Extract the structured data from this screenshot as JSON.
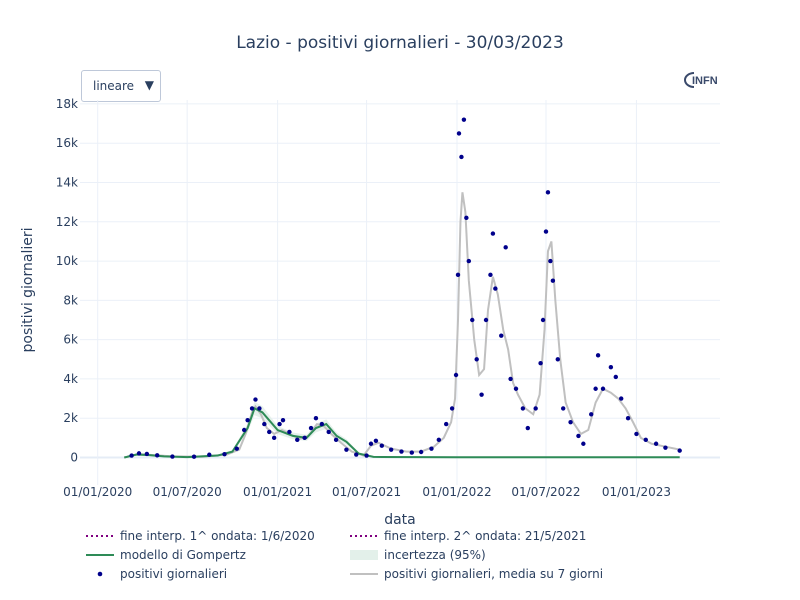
{
  "title": "Lazio - positivi giornalieri - 30/03/2023",
  "dropdown": {
    "selected": "lineare",
    "arrow_icon": "triangle-down-icon"
  },
  "logo": {
    "text": "INFN"
  },
  "colors": {
    "dots": "#00008b",
    "gompertz": "#2e8b57",
    "moving_avg": "#c0c0c0",
    "uncertainty": "#e3f0ea",
    "interp_lines": "#800080",
    "grid": "#ebf0f8",
    "text": "#2a3f5f"
  },
  "chart_data": {
    "type": "scatter",
    "title": "Lazio - positivi giornalieri - 30/03/2023",
    "xlabel": "data",
    "ylabel": "positivi giornalieri",
    "x_range": [
      "2019-11-26",
      "2023-06-20"
    ],
    "ylim": [
      -1400,
      18200
    ],
    "yticks": [
      0,
      2000,
      4000,
      6000,
      8000,
      10000,
      12000,
      14000,
      16000,
      18000
    ],
    "ytick_labels": [
      "0",
      "2k",
      "4k",
      "6k",
      "8k",
      "10k",
      "12k",
      "14k",
      "16k",
      "18k"
    ],
    "xticks": [
      "2020-01-01",
      "2020-07-01",
      "2021-01-01",
      "2021-07-01",
      "2022-01-01",
      "2022-07-01",
      "2023-01-01"
    ],
    "xtick_labels": [
      "01/01/2020",
      "01/07/2020",
      "01/01/2021",
      "01/07/2021",
      "01/01/2022",
      "01/07/2022",
      "01/01/2023"
    ],
    "grid": true,
    "legend_position": "bottom",
    "series": [
      {
        "name": "fine interp. 1^ ondata: 1/6/2020",
        "style": "dotted"
      },
      {
        "name": "fine interp. 2^ ondata: 21/5/2021",
        "style": "dotted"
      },
      {
        "name": "modello di Gompertz",
        "style": "line",
        "x": [
          "2020-02-24",
          "2020-03-20",
          "2020-04-15",
          "2020-05-15",
          "2020-07-01",
          "2020-09-01",
          "2020-10-01",
          "2020-11-01",
          "2020-11-15",
          "2020-12-01",
          "2021-01-01",
          "2021-02-01",
          "2021-03-01",
          "2021-03-20",
          "2021-04-10",
          "2021-05-01",
          "2021-05-21",
          "2021-06-15",
          "2021-07-15",
          "2022-01-01",
          "2023-03-30"
        ],
        "y": [
          0,
          150,
          120,
          60,
          20,
          100,
          300,
          1500,
          2500,
          2300,
          1400,
          1100,
          1000,
          1500,
          1700,
          1100,
          800,
          200,
          30,
          10,
          10
        ]
      },
      {
        "name": "incertezza (95%)",
        "style": "band"
      },
      {
        "name": "positivi giornalieri",
        "style": "markers",
        "points": [
          [
            "2020-03-10",
            100
          ],
          [
            "2020-03-25",
            210
          ],
          [
            "2020-04-10",
            180
          ],
          [
            "2020-05-01",
            110
          ],
          [
            "2020-06-01",
            50
          ],
          [
            "2020-07-15",
            40
          ],
          [
            "2020-08-15",
            140
          ],
          [
            "2020-09-15",
            170
          ],
          [
            "2020-10-10",
            450
          ],
          [
            "2020-10-25",
            1400
          ],
          [
            "2020-11-01",
            1900
          ],
          [
            "2020-11-10",
            2500
          ],
          [
            "2020-11-17",
            2950
          ],
          [
            "2020-11-25",
            2500
          ],
          [
            "2020-12-05",
            1700
          ],
          [
            "2020-12-15",
            1300
          ],
          [
            "2020-12-25",
            1000
          ],
          [
            "2021-01-05",
            1700
          ],
          [
            "2021-01-12",
            1900
          ],
          [
            "2021-01-25",
            1300
          ],
          [
            "2021-02-10",
            900
          ],
          [
            "2021-02-25",
            1000
          ],
          [
            "2021-03-10",
            1500
          ],
          [
            "2021-03-20",
            2000
          ],
          [
            "2021-04-01",
            1700
          ],
          [
            "2021-04-15",
            1300
          ],
          [
            "2021-04-30",
            900
          ],
          [
            "2021-05-21",
            400
          ],
          [
            "2021-06-10",
            150
          ],
          [
            "2021-07-01",
            100
          ],
          [
            "2021-07-10",
            700
          ],
          [
            "2021-07-20",
            850
          ],
          [
            "2021-08-01",
            600
          ],
          [
            "2021-08-20",
            400
          ],
          [
            "2021-09-10",
            300
          ],
          [
            "2021-10-01",
            250
          ],
          [
            "2021-10-20",
            280
          ],
          [
            "2021-11-10",
            450
          ],
          [
            "2021-11-25",
            900
          ],
          [
            "2021-12-10",
            1700
          ],
          [
            "2021-12-22",
            2500
          ],
          [
            "2021-12-30",
            4200
          ],
          [
            "2022-01-03",
            9300
          ],
          [
            "2022-01-05",
            16500
          ],
          [
            "2022-01-10",
            15300
          ],
          [
            "2022-01-15",
            17200
          ],
          [
            "2022-01-20",
            12200
          ],
          [
            "2022-01-25",
            10000
          ],
          [
            "2022-02-01",
            7000
          ],
          [
            "2022-02-10",
            5000
          ],
          [
            "2022-02-20",
            3200
          ],
          [
            "2022-03-01",
            7000
          ],
          [
            "2022-03-10",
            9300
          ],
          [
            "2022-03-15",
            11400
          ],
          [
            "2022-03-20",
            8600
          ],
          [
            "2022-04-01",
            6200
          ],
          [
            "2022-04-10",
            10700
          ],
          [
            "2022-04-20",
            4000
          ],
          [
            "2022-05-01",
            3500
          ],
          [
            "2022-05-15",
            2500
          ],
          [
            "2022-05-25",
            1500
          ],
          [
            "2022-06-10",
            2500
          ],
          [
            "2022-06-20",
            4800
          ],
          [
            "2022-06-25",
            7000
          ],
          [
            "2022-07-01",
            11500
          ],
          [
            "2022-07-05",
            13500
          ],
          [
            "2022-07-10",
            10000
          ],
          [
            "2022-07-15",
            9000
          ],
          [
            "2022-07-25",
            5000
          ],
          [
            "2022-08-05",
            2500
          ],
          [
            "2022-08-20",
            1800
          ],
          [
            "2022-09-05",
            1100
          ],
          [
            "2022-09-15",
            700
          ],
          [
            "2022-10-01",
            2200
          ],
          [
            "2022-10-10",
            3500
          ],
          [
            "2022-10-15",
            5200
          ],
          [
            "2022-10-25",
            3500
          ],
          [
            "2022-11-10",
            4600
          ],
          [
            "2022-11-20",
            4100
          ],
          [
            "2022-12-01",
            3000
          ],
          [
            "2022-12-15",
            2000
          ],
          [
            "2023-01-01",
            1200
          ],
          [
            "2023-01-20",
            900
          ],
          [
            "2023-02-10",
            700
          ],
          [
            "2023-03-01",
            500
          ],
          [
            "2023-03-30",
            350
          ]
        ]
      },
      {
        "name": "positivi giornalieri, media su 7 giorni",
        "style": "line",
        "x": [
          "2020-02-24",
          "2020-03-25",
          "2020-04-20",
          "2020-06-01",
          "2020-08-01",
          "2020-09-20",
          "2020-10-15",
          "2020-10-28",
          "2020-11-10",
          "2020-11-17",
          "2020-11-28",
          "2020-12-10",
          "2020-12-25",
          "2021-01-10",
          "2021-01-25",
          "2021-02-15",
          "2021-03-05",
          "2021-03-22",
          "2021-04-05",
          "2021-04-20",
          "2021-05-10",
          "2021-06-01",
          "2021-06-25",
          "2021-07-10",
          "2021-07-25",
          "2021-08-20",
          "2021-09-20",
          "2021-10-20",
          "2021-11-15",
          "2021-12-05",
          "2021-12-20",
          "2021-12-28",
          "2022-01-03",
          "2022-01-08",
          "2022-01-12",
          "2022-01-18",
          "2022-01-25",
          "2022-02-05",
          "2022-02-15",
          "2022-02-25",
          "2022-03-05",
          "2022-03-15",
          "2022-03-25",
          "2022-04-05",
          "2022-04-15",
          "2022-04-25",
          "2022-05-05",
          "2022-05-20",
          "2022-06-05",
          "2022-06-18",
          "2022-06-28",
          "2022-07-05",
          "2022-07-12",
          "2022-07-20",
          "2022-07-30",
          "2022-08-10",
          "2022-08-25",
          "2022-09-10",
          "2022-09-25",
          "2022-10-10",
          "2022-10-25",
          "2022-11-10",
          "2022-11-25",
          "2022-12-10",
          "2022-12-25",
          "2023-01-10",
          "2023-02-01",
          "2023-03-01",
          "2023-03-30"
        ],
        "y": [
          0,
          180,
          130,
          60,
          40,
          150,
          400,
          1200,
          2300,
          2600,
          2200,
          1500,
          1200,
          1400,
          1200,
          950,
          1100,
          1700,
          1600,
          1200,
          750,
          300,
          100,
          600,
          750,
          450,
          300,
          300,
          550,
          1000,
          1800,
          3000,
          7000,
          12000,
          13500,
          12500,
          9000,
          6000,
          4200,
          4500,
          7500,
          9200,
          8300,
          6500,
          5500,
          3800,
          3200,
          2500,
          2200,
          3200,
          6500,
          10500,
          11000,
          8000,
          5000,
          2800,
          1800,
          1200,
          1400,
          2800,
          3500,
          3300,
          3000,
          2500,
          1800,
          1000,
          700,
          550,
          400
        ]
      }
    ]
  }
}
